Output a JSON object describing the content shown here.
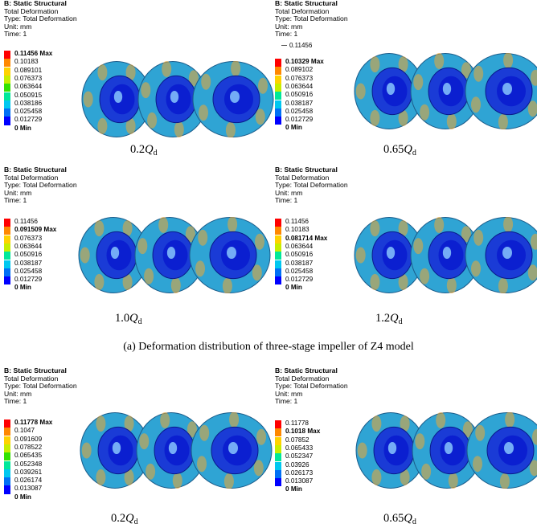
{
  "figure": {
    "caption": "(a) Deformation distribution of three-stage impeller of Z4 model",
    "colors": {
      "legend": [
        "#ff0000",
        "#ff8800",
        "#ffd200",
        "#c7ee00",
        "#33e200",
        "#00e89a",
        "#00c8f0",
        "#0070f5",
        "#0000ff"
      ],
      "impeller_base": "#2fa4d4",
      "impeller_hub": "#1a3bd6",
      "impeller_core": "#0b1fd0",
      "hot_spot": "#f0a830"
    },
    "panels": [
      {
        "header": {
          "title": "B: Static Structural",
          "line2": "Total Deformation",
          "line3": "Type: Total Deformation",
          "line4": "Unit: mm",
          "line5": "Time: 1"
        },
        "probe": "",
        "legend": [
          "0.11456 Max",
          "0.10183",
          "0.089101",
          "0.076373",
          "0.063644",
          "0.050915",
          "0.038186",
          "0.025458",
          "0.012729",
          "0 Min"
        ],
        "condition": {
          "coef": "0.2",
          "symbol": "Q",
          "sub": "d"
        }
      },
      {
        "header": {
          "title": "B: Static Structural",
          "line2": "Total Deformation",
          "line3": "Type: Total Deformation",
          "line4": "Unit: mm",
          "line5": "Time: 1"
        },
        "probe": "0.11456",
        "legend": [
          "0.10329 Max",
          "0.089102",
          "0.076373",
          "0.063644",
          "0.050916",
          "0.038187",
          "0.025458",
          "0.012729",
          "0 Min"
        ],
        "condition": {
          "coef": "0.65",
          "symbol": "Q",
          "sub": "d"
        }
      },
      {
        "header": {
          "title": "B: Static Structural",
          "line2": "Total Deformation",
          "line3": "Type: Total Deformation",
          "line4": "Unit: mm",
          "line5": "Time: 1"
        },
        "probe": "",
        "legend": [
          "0.11456",
          "0.091509 Max",
          "0.076373",
          "0.063644",
          "0.050916",
          "0.038187",
          "0.025458",
          "0.012729",
          "0 Min"
        ],
        "condition": {
          "coef": "1.0",
          "symbol": "Q",
          "sub": "d"
        }
      },
      {
        "header": {
          "title": "B: Static Structural",
          "line2": "Total Deformation",
          "line3": "Type: Total Deformation",
          "line4": "Unit: mm",
          "line5": "Time: 1"
        },
        "probe": "",
        "legend": [
          "0.11456",
          "0.10183",
          "0.081714 Max",
          "0.063644",
          "0.050916",
          "0.038187",
          "0.025458",
          "0.012729",
          "0 Min"
        ],
        "condition": {
          "coef": "1.2",
          "symbol": "Q",
          "sub": "d"
        }
      },
      {
        "header": {
          "title": "B: Static Structural",
          "line2": "Total Deformation",
          "line3": "Type: Total Deformation",
          "line4": "Unit: mm",
          "line5": "Time: 1"
        },
        "probe": "",
        "legend": [
          "0.11778 Max",
          "0.1047",
          "0.091609",
          "0.078522",
          "0.065435",
          "0.052348",
          "0.039261",
          "0.026174",
          "0.013087",
          "0 Min"
        ],
        "condition": {
          "coef": "0.2",
          "symbol": "Q",
          "sub": "d"
        }
      },
      {
        "header": {
          "title": "B: Static Structural",
          "line2": "Total Deformation",
          "line3": "Type: Total Deformation",
          "line4": "Unit: mm",
          "line5": "Time: 1"
        },
        "probe": "",
        "legend": [
          "0.11778",
          "0.1018 Max",
          "0.07852",
          "0.065433",
          "0.052347",
          "0.03926",
          "0.026173",
          "0.013087",
          "0 Min"
        ],
        "condition": {
          "coef": "0.65",
          "symbol": "Q",
          "sub": "d"
        }
      }
    ]
  }
}
